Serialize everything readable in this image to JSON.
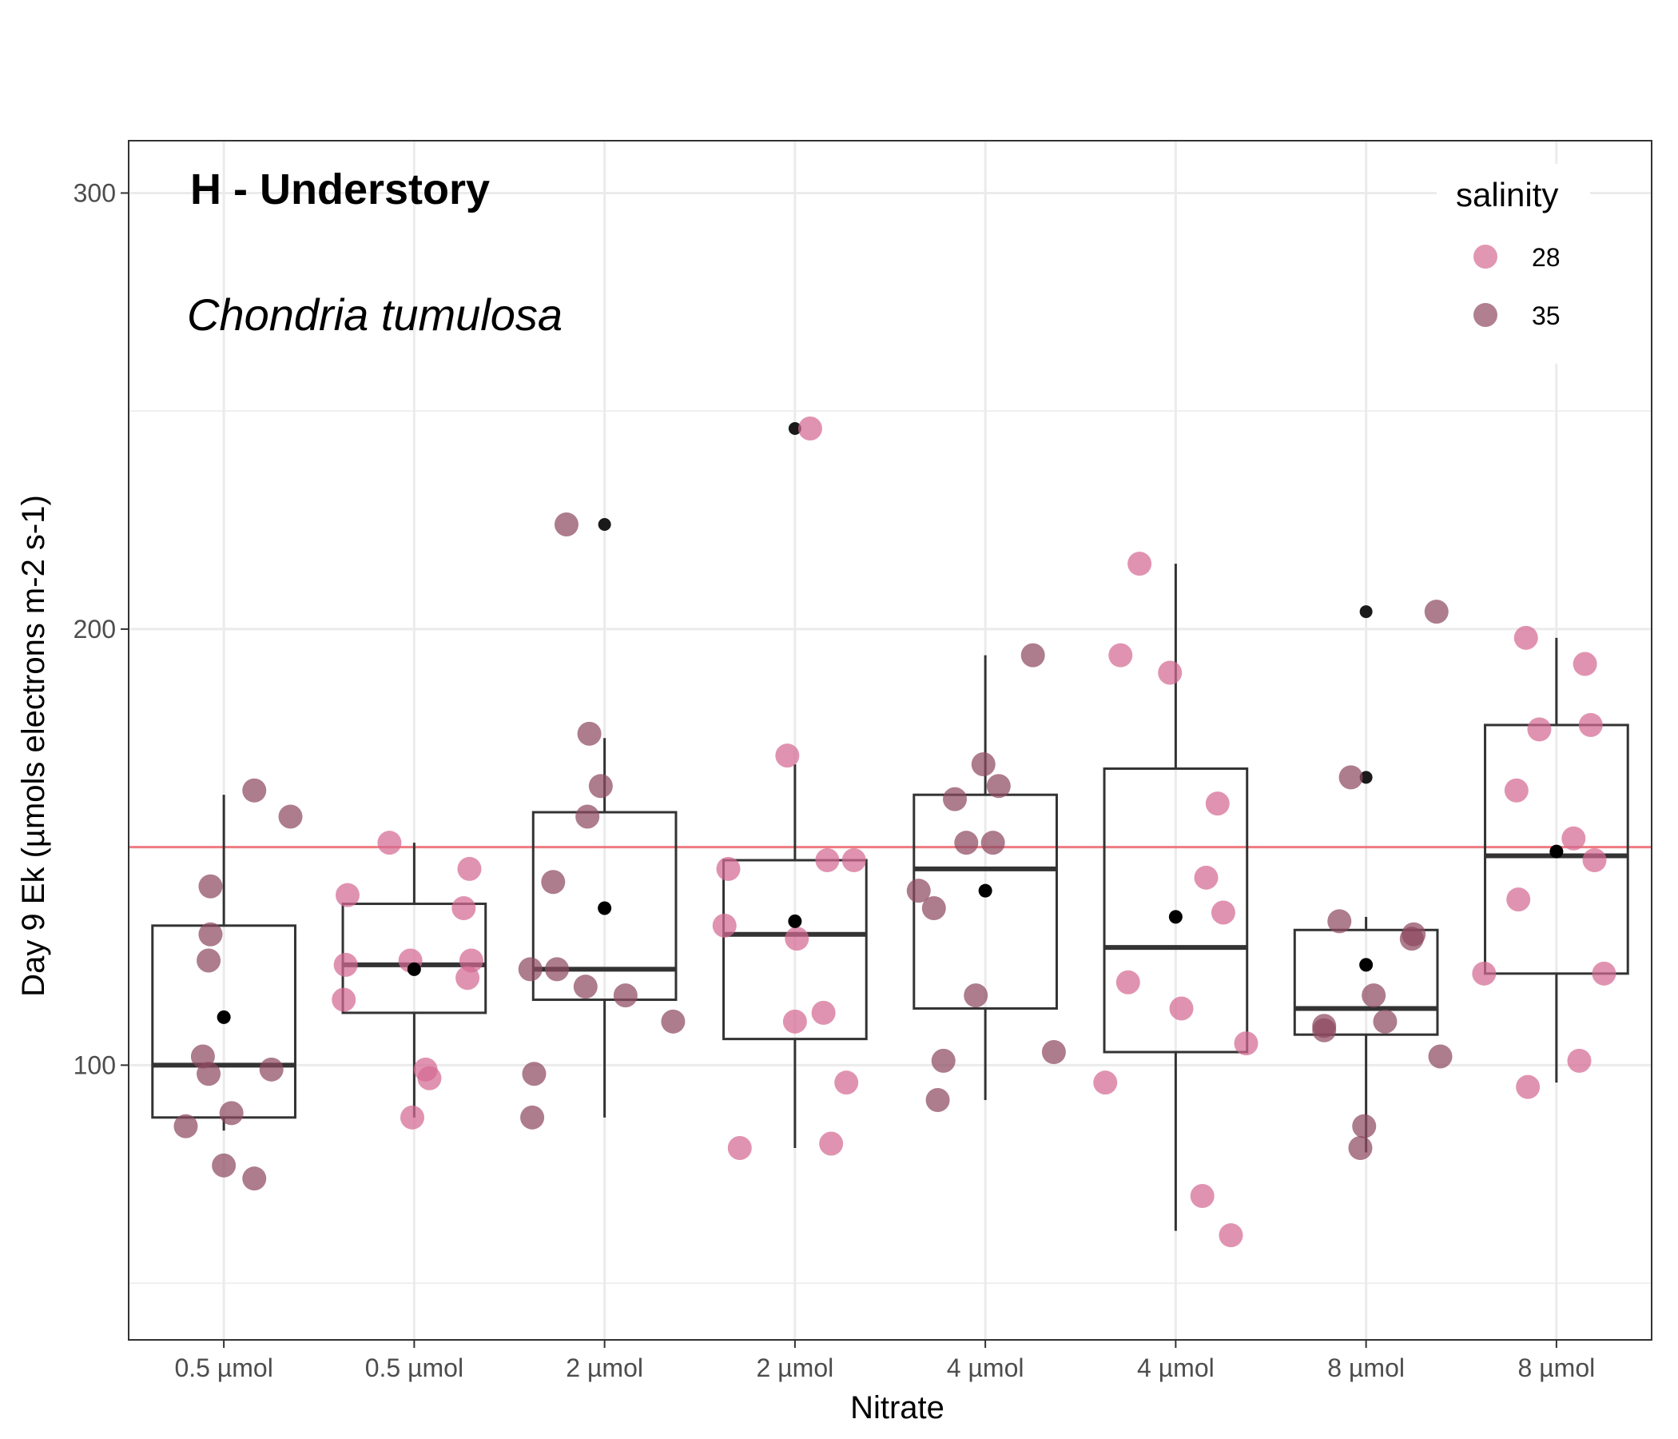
{
  "chart_data": {
    "type": "boxplot_with_jitter",
    "panel_title": "H - Understory",
    "subtitle": "Chondria tumulosa",
    "xlabel": "Nitrate",
    "ylabel": "Day 9 Ek (µmols electrons m-2 s-1)",
    "ylim": [
      37,
      312
    ],
    "yticks": [
      100,
      200,
      300
    ],
    "ytick_labels": [
      "100",
      "200",
      "300"
    ],
    "ygrid_minor": [
      50,
      150,
      250
    ],
    "reference_line": {
      "y": 150,
      "color": "#ee7a80"
    },
    "categories": [
      "0.5 µmol",
      "0.5 µmol",
      "2 µmol",
      "2 µmol",
      "4 µmol",
      "4 µmol",
      "8 µmol",
      "8 µmol"
    ],
    "legend": {
      "title": "salinity",
      "placement": "top-right",
      "entries": [
        {
          "label": "28",
          "color": "#d46a92"
        },
        {
          "label": "35",
          "color": "#8e4a61"
        }
      ]
    },
    "boxes": [
      {
        "q1": 88,
        "median": 100,
        "q3": 132,
        "whisker_low": 85,
        "whisker_high": 162,
        "mean": 111,
        "outliers": []
      },
      {
        "q1": 112,
        "median": 123,
        "q3": 137,
        "whisker_low": 88,
        "whisker_high": 151,
        "mean": 122,
        "outliers": []
      },
      {
        "q1": 115,
        "median": 122,
        "q3": 158,
        "whisker_low": 88,
        "whisker_high": 175,
        "mean": 136,
        "outliers": [
          224
        ]
      },
      {
        "q1": 106,
        "median": 130,
        "q3": 147,
        "whisker_low": 81,
        "whisker_high": 169,
        "mean": 133,
        "outliers": [
          246
        ]
      },
      {
        "q1": 113,
        "median": 145,
        "q3": 162,
        "whisker_low": 92,
        "whisker_high": 194,
        "mean": 140,
        "outliers": []
      },
      {
        "q1": 103,
        "median": 127,
        "q3": 168,
        "whisker_low": 62,
        "whisker_high": 215,
        "mean": 134,
        "outliers": []
      },
      {
        "q1": 107,
        "median": 113,
        "q3": 131,
        "whisker_low": 80,
        "whisker_high": 134,
        "mean": 123,
        "outliers": [
          204,
          166
        ]
      },
      {
        "q1": 121,
        "median": 148,
        "q3": 178,
        "whisker_low": 96,
        "whisker_high": 198,
        "mean": 149,
        "outliers": []
      }
    ],
    "points": [
      {
        "group": 1,
        "x_offset": 0.16,
        "y": 163,
        "salinity": "35"
      },
      {
        "group": 1,
        "x_offset": 0.35,
        "y": 157,
        "salinity": "35"
      },
      {
        "group": 1,
        "x_offset": -0.07,
        "y": 141,
        "salinity": "35"
      },
      {
        "group": 1,
        "x_offset": -0.07,
        "y": 130,
        "salinity": "35"
      },
      {
        "group": 1,
        "x_offset": -0.08,
        "y": 124,
        "salinity": "35"
      },
      {
        "group": 1,
        "x_offset": -0.11,
        "y": 102,
        "salinity": "35"
      },
      {
        "group": 1,
        "x_offset": -0.08,
        "y": 98,
        "salinity": "35"
      },
      {
        "group": 1,
        "x_offset": 0.25,
        "y": 99,
        "salinity": "35"
      },
      {
        "group": 1,
        "x_offset": 0.04,
        "y": 89,
        "salinity": "35"
      },
      {
        "group": 1,
        "x_offset": -0.2,
        "y": 86,
        "salinity": "35"
      },
      {
        "group": 1,
        "x_offset": 0.0,
        "y": 77,
        "salinity": "35"
      },
      {
        "group": 1,
        "x_offset": 0.16,
        "y": 74,
        "salinity": "35"
      },
      {
        "group": 2,
        "x_offset": -0.13,
        "y": 151,
        "salinity": "28"
      },
      {
        "group": 2,
        "x_offset": 0.29,
        "y": 145,
        "salinity": "28"
      },
      {
        "group": 2,
        "x_offset": -0.35,
        "y": 139,
        "salinity": "28"
      },
      {
        "group": 2,
        "x_offset": 0.26,
        "y": 136,
        "salinity": "28"
      },
      {
        "group": 2,
        "x_offset": -0.02,
        "y": 124,
        "salinity": "28"
      },
      {
        "group": 2,
        "x_offset": -0.36,
        "y": 123,
        "salinity": "28"
      },
      {
        "group": 2,
        "x_offset": 0.3,
        "y": 124,
        "salinity": "28"
      },
      {
        "group": 2,
        "x_offset": 0.28,
        "y": 120,
        "salinity": "28"
      },
      {
        "group": 2,
        "x_offset": -0.37,
        "y": 115,
        "salinity": "28"
      },
      {
        "group": 2,
        "x_offset": 0.06,
        "y": 99,
        "salinity": "28"
      },
      {
        "group": 2,
        "x_offset": 0.08,
        "y": 97,
        "salinity": "28"
      },
      {
        "group": 2,
        "x_offset": -0.01,
        "y": 88,
        "salinity": "28"
      },
      {
        "group": 3,
        "x_offset": -0.2,
        "y": 224,
        "salinity": "35"
      },
      {
        "group": 3,
        "x_offset": -0.08,
        "y": 176,
        "salinity": "35"
      },
      {
        "group": 3,
        "x_offset": -0.02,
        "y": 164,
        "salinity": "35"
      },
      {
        "group": 3,
        "x_offset": -0.09,
        "y": 157,
        "salinity": "35"
      },
      {
        "group": 3,
        "x_offset": -0.27,
        "y": 142,
        "salinity": "35"
      },
      {
        "group": 3,
        "x_offset": -0.39,
        "y": 122,
        "salinity": "35"
      },
      {
        "group": 3,
        "x_offset": -0.25,
        "y": 122,
        "salinity": "35"
      },
      {
        "group": 3,
        "x_offset": -0.1,
        "y": 118,
        "salinity": "35"
      },
      {
        "group": 3,
        "x_offset": 0.11,
        "y": 116,
        "salinity": "35"
      },
      {
        "group": 3,
        "x_offset": 0.36,
        "y": 110,
        "salinity": "35"
      },
      {
        "group": 3,
        "x_offset": -0.37,
        "y": 98,
        "salinity": "35"
      },
      {
        "group": 3,
        "x_offset": -0.38,
        "y": 88,
        "salinity": "35"
      },
      {
        "group": 4,
        "x_offset": 0.08,
        "y": 246,
        "salinity": "28"
      },
      {
        "group": 4,
        "x_offset": -0.04,
        "y": 171,
        "salinity": "28"
      },
      {
        "group": 4,
        "x_offset": 0.17,
        "y": 147,
        "salinity": "28"
      },
      {
        "group": 4,
        "x_offset": 0.31,
        "y": 147,
        "salinity": "28"
      },
      {
        "group": 4,
        "x_offset": -0.35,
        "y": 145,
        "salinity": "28"
      },
      {
        "group": 4,
        "x_offset": -0.37,
        "y": 132,
        "salinity": "28"
      },
      {
        "group": 4,
        "x_offset": 0.01,
        "y": 129,
        "salinity": "28"
      },
      {
        "group": 4,
        "x_offset": 0.15,
        "y": 112,
        "salinity": "28"
      },
      {
        "group": 4,
        "x_offset": 0.0,
        "y": 110,
        "salinity": "28"
      },
      {
        "group": 4,
        "x_offset": 0.27,
        "y": 96,
        "salinity": "28"
      },
      {
        "group": 4,
        "x_offset": -0.29,
        "y": 81,
        "salinity": "28"
      },
      {
        "group": 4,
        "x_offset": 0.19,
        "y": 82,
        "salinity": "28"
      },
      {
        "group": 5,
        "x_offset": 0.25,
        "y": 194,
        "salinity": "35"
      },
      {
        "group": 5,
        "x_offset": -0.01,
        "y": 169,
        "salinity": "35"
      },
      {
        "group": 5,
        "x_offset": 0.07,
        "y": 164,
        "salinity": "35"
      },
      {
        "group": 5,
        "x_offset": -0.16,
        "y": 161,
        "salinity": "35"
      },
      {
        "group": 5,
        "x_offset": -0.1,
        "y": 151,
        "salinity": "35"
      },
      {
        "group": 5,
        "x_offset": 0.04,
        "y": 151,
        "salinity": "35"
      },
      {
        "group": 5,
        "x_offset": -0.35,
        "y": 140,
        "salinity": "35"
      },
      {
        "group": 5,
        "x_offset": -0.27,
        "y": 136,
        "salinity": "35"
      },
      {
        "group": 5,
        "x_offset": -0.05,
        "y": 116,
        "salinity": "35"
      },
      {
        "group": 5,
        "x_offset": 0.36,
        "y": 103,
        "salinity": "35"
      },
      {
        "group": 5,
        "x_offset": -0.22,
        "y": 101,
        "salinity": "35"
      },
      {
        "group": 5,
        "x_offset": -0.25,
        "y": 92,
        "salinity": "35"
      },
      {
        "group": 6,
        "x_offset": -0.19,
        "y": 215,
        "salinity": "28"
      },
      {
        "group": 6,
        "x_offset": -0.29,
        "y": 194,
        "salinity": "28"
      },
      {
        "group": 6,
        "x_offset": -0.03,
        "y": 190,
        "salinity": "28"
      },
      {
        "group": 6,
        "x_offset": 0.22,
        "y": 160,
        "salinity": "28"
      },
      {
        "group": 6,
        "x_offset": 0.16,
        "y": 143,
        "salinity": "28"
      },
      {
        "group": 6,
        "x_offset": 0.25,
        "y": 135,
        "salinity": "28"
      },
      {
        "group": 6,
        "x_offset": -0.25,
        "y": 119,
        "salinity": "28"
      },
      {
        "group": 6,
        "x_offset": 0.03,
        "y": 113,
        "salinity": "28"
      },
      {
        "group": 6,
        "x_offset": 0.37,
        "y": 105,
        "salinity": "28"
      },
      {
        "group": 6,
        "x_offset": -0.37,
        "y": 96,
        "salinity": "28"
      },
      {
        "group": 6,
        "x_offset": 0.14,
        "y": 70,
        "salinity": "28"
      },
      {
        "group": 6,
        "x_offset": 0.29,
        "y": 61,
        "salinity": "28"
      },
      {
        "group": 7,
        "x_offset": 0.37,
        "y": 204,
        "salinity": "35"
      },
      {
        "group": 7,
        "x_offset": -0.08,
        "y": 166,
        "salinity": "35"
      },
      {
        "group": 7,
        "x_offset": -0.14,
        "y": 133,
        "salinity": "35"
      },
      {
        "group": 7,
        "x_offset": 0.25,
        "y": 130,
        "salinity": "35"
      },
      {
        "group": 7,
        "x_offset": 0.24,
        "y": 129,
        "salinity": "35"
      },
      {
        "group": 7,
        "x_offset": 0.04,
        "y": 116,
        "salinity": "35"
      },
      {
        "group": 7,
        "x_offset": 0.1,
        "y": 110,
        "salinity": "35"
      },
      {
        "group": 7,
        "x_offset": -0.22,
        "y": 109,
        "salinity": "35"
      },
      {
        "group": 7,
        "x_offset": -0.22,
        "y": 108,
        "salinity": "35"
      },
      {
        "group": 7,
        "x_offset": 0.39,
        "y": 102,
        "salinity": "35"
      },
      {
        "group": 7,
        "x_offset": -0.01,
        "y": 86,
        "salinity": "35"
      },
      {
        "group": 7,
        "x_offset": -0.03,
        "y": 81,
        "salinity": "35"
      },
      {
        "group": 8,
        "x_offset": -0.16,
        "y": 198,
        "salinity": "28"
      },
      {
        "group": 8,
        "x_offset": 0.15,
        "y": 192,
        "salinity": "28"
      },
      {
        "group": 8,
        "x_offset": -0.09,
        "y": 177,
        "salinity": "28"
      },
      {
        "group": 8,
        "x_offset": 0.18,
        "y": 178,
        "salinity": "28"
      },
      {
        "group": 8,
        "x_offset": -0.21,
        "y": 163,
        "salinity": "28"
      },
      {
        "group": 8,
        "x_offset": 0.09,
        "y": 152,
        "salinity": "28"
      },
      {
        "group": 8,
        "x_offset": 0.2,
        "y": 147,
        "salinity": "28"
      },
      {
        "group": 8,
        "x_offset": -0.2,
        "y": 138,
        "salinity": "28"
      },
      {
        "group": 8,
        "x_offset": -0.38,
        "y": 121,
        "salinity": "28"
      },
      {
        "group": 8,
        "x_offset": 0.25,
        "y": 121,
        "salinity": "28"
      },
      {
        "group": 8,
        "x_offset": 0.12,
        "y": 101,
        "salinity": "28"
      },
      {
        "group": 8,
        "x_offset": -0.15,
        "y": 95,
        "salinity": "28"
      }
    ]
  }
}
